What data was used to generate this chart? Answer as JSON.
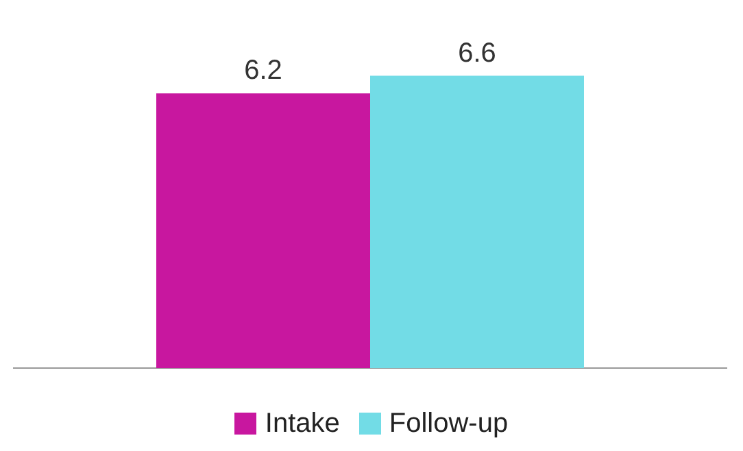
{
  "chart_data": {
    "type": "bar",
    "categories": [
      null
    ],
    "series": [
      {
        "name": "Intake",
        "color": "#c8179f",
        "values": [
          6.2
        ]
      },
      {
        "name": "Follow-up",
        "color": "#72dce6",
        "values": [
          6.6
        ]
      }
    ],
    "grid": false,
    "legend": "bottom",
    "data_labels": true
  }
}
